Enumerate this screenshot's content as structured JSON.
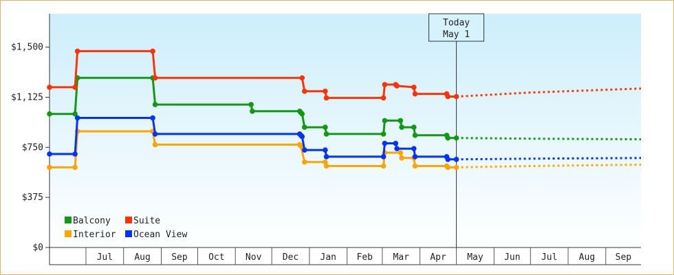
{
  "chart_data": {
    "type": "line",
    "title": "",
    "xlabel": "",
    "ylabel": "",
    "ylim": [
      0,
      1750
    ],
    "yticks": [
      0,
      375,
      750,
      1125,
      1500
    ],
    "ytick_labels": [
      "$0",
      "$375",
      "$750",
      "$1,125",
      "$1,500"
    ],
    "x_domain": [
      "2023-06-01",
      "2024-09-30"
    ],
    "month_ticks": [
      {
        "label": "Jul",
        "start": "2023-07-01",
        "end": "2023-08-01"
      },
      {
        "label": "Aug",
        "start": "2023-08-01",
        "end": "2023-09-01"
      },
      {
        "label": "Sep",
        "start": "2023-09-01",
        "end": "2023-10-01"
      },
      {
        "label": "Oct",
        "start": "2023-10-01",
        "end": "2023-11-01"
      },
      {
        "label": "Nov",
        "start": "2023-11-01",
        "end": "2023-12-01"
      },
      {
        "label": "Dec",
        "start": "2023-12-01",
        "end": "2024-01-01"
      },
      {
        "label": "Jan",
        "start": "2024-01-01",
        "end": "2024-02-01"
      },
      {
        "label": "Feb",
        "start": "2024-02-01",
        "end": "2024-03-01"
      },
      {
        "label": "Mar",
        "start": "2024-03-01",
        "end": "2024-04-01"
      },
      {
        "label": "Apr",
        "start": "2024-04-01",
        "end": "2024-05-01"
      },
      {
        "label": "May",
        "start": "2024-05-01",
        "end": "2024-06-01"
      },
      {
        "label": "Jun",
        "start": "2024-06-01",
        "end": "2024-07-01"
      },
      {
        "label": "Jul",
        "start": "2024-07-01",
        "end": "2024-08-01"
      },
      {
        "label": "Aug",
        "start": "2024-08-01",
        "end": "2024-09-01"
      },
      {
        "label": "Sep",
        "start": "2024-09-01",
        "end": "2024-09-30"
      }
    ],
    "today": {
      "line1": "Today",
      "line2": "May 1",
      "date": "2024-05-01"
    },
    "legend": {
      "position": "bottom-left"
    },
    "grid": false,
    "colors": {
      "plot_bg_top": "#cdeefb",
      "plot_bg_bottom": "#ffffff",
      "frame": "#e3b36a"
    },
    "series": [
      {
        "name": "Balcony",
        "color": "#119911",
        "points": [
          [
            "2023-06-01",
            1000
          ],
          [
            "2023-06-22",
            1000
          ],
          [
            "2023-06-24",
            1270
          ],
          [
            "2023-08-25",
            1270
          ],
          [
            "2023-08-27",
            1070
          ],
          [
            "2023-11-14",
            1070
          ],
          [
            "2023-11-15",
            1020
          ],
          [
            "2023-12-24",
            1020
          ],
          [
            "2023-12-25",
            1010
          ],
          [
            "2023-12-26",
            1000
          ],
          [
            "2023-12-28",
            900
          ],
          [
            "2024-01-14",
            900
          ],
          [
            "2024-01-15",
            850
          ],
          [
            "2024-03-02",
            850
          ],
          [
            "2024-03-03",
            950
          ],
          [
            "2024-03-16",
            950
          ],
          [
            "2024-03-17",
            900
          ],
          [
            "2024-03-27",
            900
          ],
          [
            "2024-03-28",
            840
          ],
          [
            "2024-04-23",
            840
          ],
          [
            "2024-04-24",
            820
          ],
          [
            "2024-05-01",
            820
          ]
        ],
        "forecast": [
          [
            "2024-05-01",
            820
          ],
          [
            "2024-07-01",
            815
          ],
          [
            "2024-09-30",
            810
          ]
        ]
      },
      {
        "name": "Suite",
        "color": "#ff3300",
        "points": [
          [
            "2023-06-01",
            1200
          ],
          [
            "2023-06-22",
            1200
          ],
          [
            "2023-06-24",
            1470
          ],
          [
            "2023-08-25",
            1470
          ],
          [
            "2023-08-27",
            1270
          ],
          [
            "2023-12-26",
            1270
          ],
          [
            "2023-12-28",
            1170
          ],
          [
            "2024-01-14",
            1170
          ],
          [
            "2024-01-15",
            1120
          ],
          [
            "2024-03-02",
            1120
          ],
          [
            "2024-03-03",
            1220
          ],
          [
            "2024-03-12",
            1220
          ],
          [
            "2024-03-13",
            1210
          ],
          [
            "2024-03-27",
            1200
          ],
          [
            "2024-03-28",
            1150
          ],
          [
            "2024-04-23",
            1150
          ],
          [
            "2024-04-24",
            1130
          ],
          [
            "2024-05-01",
            1130
          ]
        ],
        "forecast": [
          [
            "2024-05-01",
            1130
          ],
          [
            "2024-07-01",
            1160
          ],
          [
            "2024-09-30",
            1190
          ]
        ]
      },
      {
        "name": "Interior",
        "color": "#ffa500",
        "points": [
          [
            "2023-06-01",
            600
          ],
          [
            "2023-06-22",
            600
          ],
          [
            "2023-06-24",
            870
          ],
          [
            "2023-08-25",
            870
          ],
          [
            "2023-08-27",
            770
          ],
          [
            "2023-12-24",
            770
          ],
          [
            "2023-12-25",
            760
          ],
          [
            "2023-12-28",
            640
          ],
          [
            "2024-01-14",
            640
          ],
          [
            "2024-01-15",
            610
          ],
          [
            "2024-03-02",
            610
          ],
          [
            "2024-03-03",
            710
          ],
          [
            "2024-03-16",
            710
          ],
          [
            "2024-03-17",
            670
          ],
          [
            "2024-03-27",
            670
          ],
          [
            "2024-03-28",
            610
          ],
          [
            "2024-04-23",
            610
          ],
          [
            "2024-04-24",
            600
          ],
          [
            "2024-05-01",
            600
          ]
        ],
        "forecast": [
          [
            "2024-05-01",
            600
          ],
          [
            "2024-07-01",
            610
          ],
          [
            "2024-09-30",
            620
          ]
        ]
      },
      {
        "name": "Ocean View",
        "color": "#0033ff",
        "points": [
          [
            "2023-06-01",
            700
          ],
          [
            "2023-06-22",
            700
          ],
          [
            "2023-06-24",
            970
          ],
          [
            "2023-08-25",
            970
          ],
          [
            "2023-08-27",
            850
          ],
          [
            "2023-12-24",
            850
          ],
          [
            "2023-12-25",
            840
          ],
          [
            "2023-12-26",
            830
          ],
          [
            "2023-12-28",
            730
          ],
          [
            "2024-01-14",
            730
          ],
          [
            "2024-01-15",
            680
          ],
          [
            "2024-03-02",
            680
          ],
          [
            "2024-03-03",
            780
          ],
          [
            "2024-03-12",
            780
          ],
          [
            "2024-03-13",
            740
          ],
          [
            "2024-03-27",
            740
          ],
          [
            "2024-03-28",
            680
          ],
          [
            "2024-04-23",
            680
          ],
          [
            "2024-04-24",
            660
          ],
          [
            "2024-05-01",
            660
          ]
        ],
        "forecast": [
          [
            "2024-05-01",
            660
          ],
          [
            "2024-07-01",
            665
          ],
          [
            "2024-09-30",
            670
          ]
        ]
      }
    ]
  }
}
